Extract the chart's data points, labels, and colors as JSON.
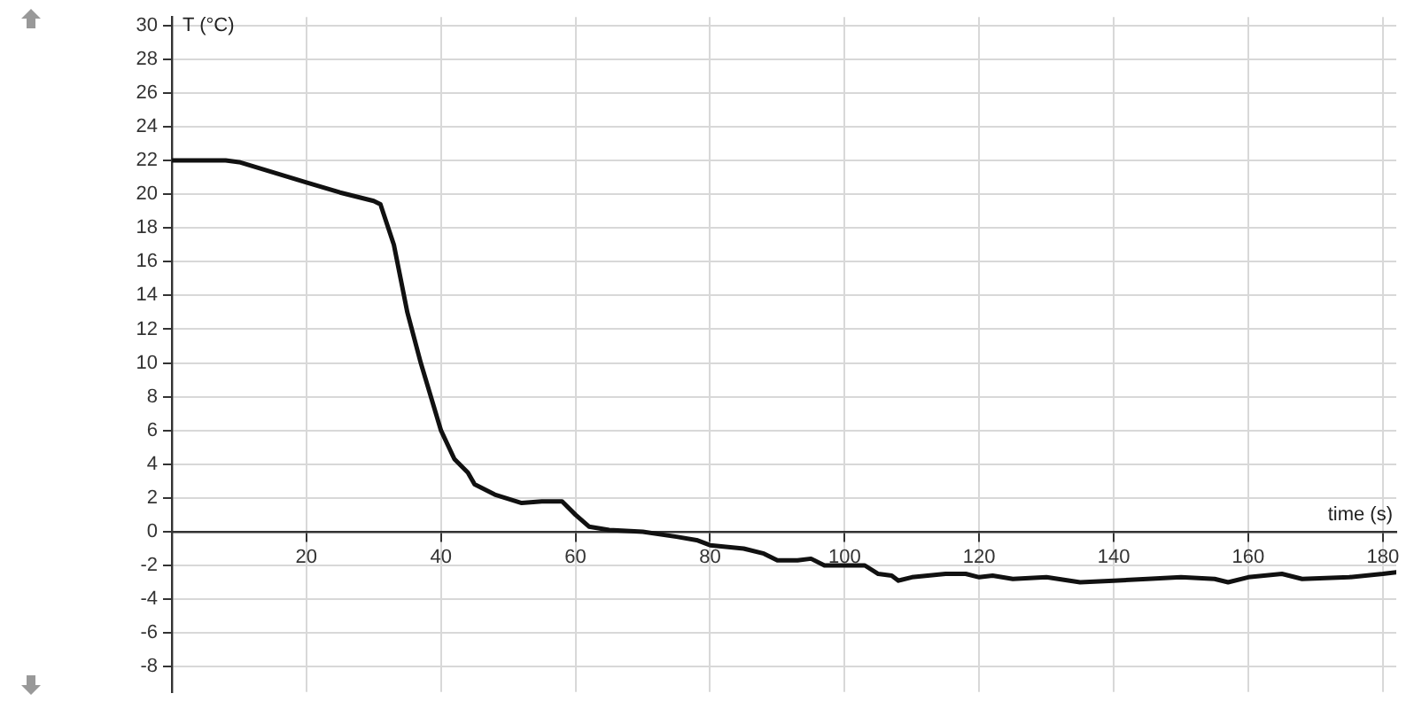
{
  "chart_data": {
    "type": "line",
    "xlabel": "time (s)",
    "ylabel": "T (°C)",
    "x": [
      0,
      4,
      8,
      10,
      15,
      20,
      25,
      30,
      31,
      33,
      35,
      37,
      40,
      42,
      44,
      45,
      48,
      52,
      55,
      58,
      60,
      62,
      65,
      70,
      75,
      78,
      80,
      85,
      88,
      90,
      93,
      95,
      97,
      100,
      103,
      105,
      107,
      108,
      110,
      115,
      118,
      120,
      122,
      125,
      130,
      135,
      140,
      145,
      150,
      155,
      157,
      160,
      165,
      168,
      175,
      180,
      182
    ],
    "series": [
      {
        "color": "#111111",
        "values": [
          22.0,
          22.0,
          22.0,
          21.9,
          21.3,
          20.7,
          20.1,
          19.6,
          19.4,
          17,
          13,
          10,
          6,
          4.3,
          3.5,
          2.8,
          2.2,
          1.7,
          1.8,
          1.8,
          1.0,
          0.3,
          0.1,
          0.0,
          -0.3,
          -0.5,
          -0.8,
          -1.0,
          -1.3,
          -1.7,
          -1.7,
          -1.6,
          -2.0,
          -2.0,
          -2.0,
          -2.5,
          -2.6,
          -2.9,
          -2.7,
          -2.5,
          -2.5,
          -2.7,
          -2.6,
          -2.8,
          -2.7,
          -3.0,
          -2.9,
          -2.8,
          -2.7,
          -2.8,
          -3.0,
          -2.7,
          -2.5,
          -2.8,
          -2.7,
          -2.5,
          -2.4
        ]
      }
    ],
    "xlim": [
      0,
      182
    ],
    "xticks": [
      20,
      40,
      60,
      80,
      100,
      120,
      140,
      160,
      180
    ],
    "ylim": [
      -9.5,
      30.5
    ],
    "yticks": [
      -8,
      -6,
      -4,
      -2,
      0,
      2,
      4,
      6,
      8,
      10,
      12,
      14,
      16,
      18,
      20,
      22,
      24,
      26,
      28,
      30
    ],
    "grid": true,
    "legend": false,
    "marker": "none",
    "line_style": "solid"
  }
}
